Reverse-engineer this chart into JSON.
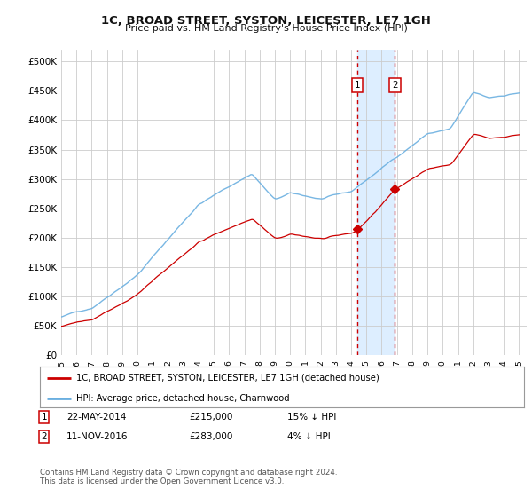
{
  "title": "1C, BROAD STREET, SYSTON, LEICESTER, LE7 1GH",
  "subtitle": "Price paid vs. HM Land Registry's House Price Index (HPI)",
  "ylabel_ticks": [
    "£0",
    "£50K",
    "£100K",
    "£150K",
    "£200K",
    "£250K",
    "£300K",
    "£350K",
    "£400K",
    "£450K",
    "£500K"
  ],
  "ytick_vals": [
    0,
    50000,
    100000,
    150000,
    200000,
    250000,
    300000,
    350000,
    400000,
    450000,
    500000
  ],
  "ylim": [
    0,
    520000
  ],
  "xlim_start": 1995.0,
  "xlim_end": 2025.5,
  "hpi_color": "#6aafe0",
  "price_color": "#cc0000",
  "sale1_date": 2014.39,
  "sale1_price": 215000,
  "sale2_date": 2016.87,
  "sale2_price": 283000,
  "legend_line1": "1C, BROAD STREET, SYSTON, LEICESTER, LE7 1GH (detached house)",
  "legend_line2": "HPI: Average price, detached house, Charnwood",
  "background_color": "#ffffff",
  "plot_bg_color": "#ffffff",
  "grid_color": "#cccccc",
  "shaded_region_color": "#ddeeff",
  "shaded_x1": 2014.39,
  "shaded_x2": 2016.87,
  "footnote": "Contains HM Land Registry data © Crown copyright and database right 2024.\nThis data is licensed under the Open Government Licence v3.0."
}
